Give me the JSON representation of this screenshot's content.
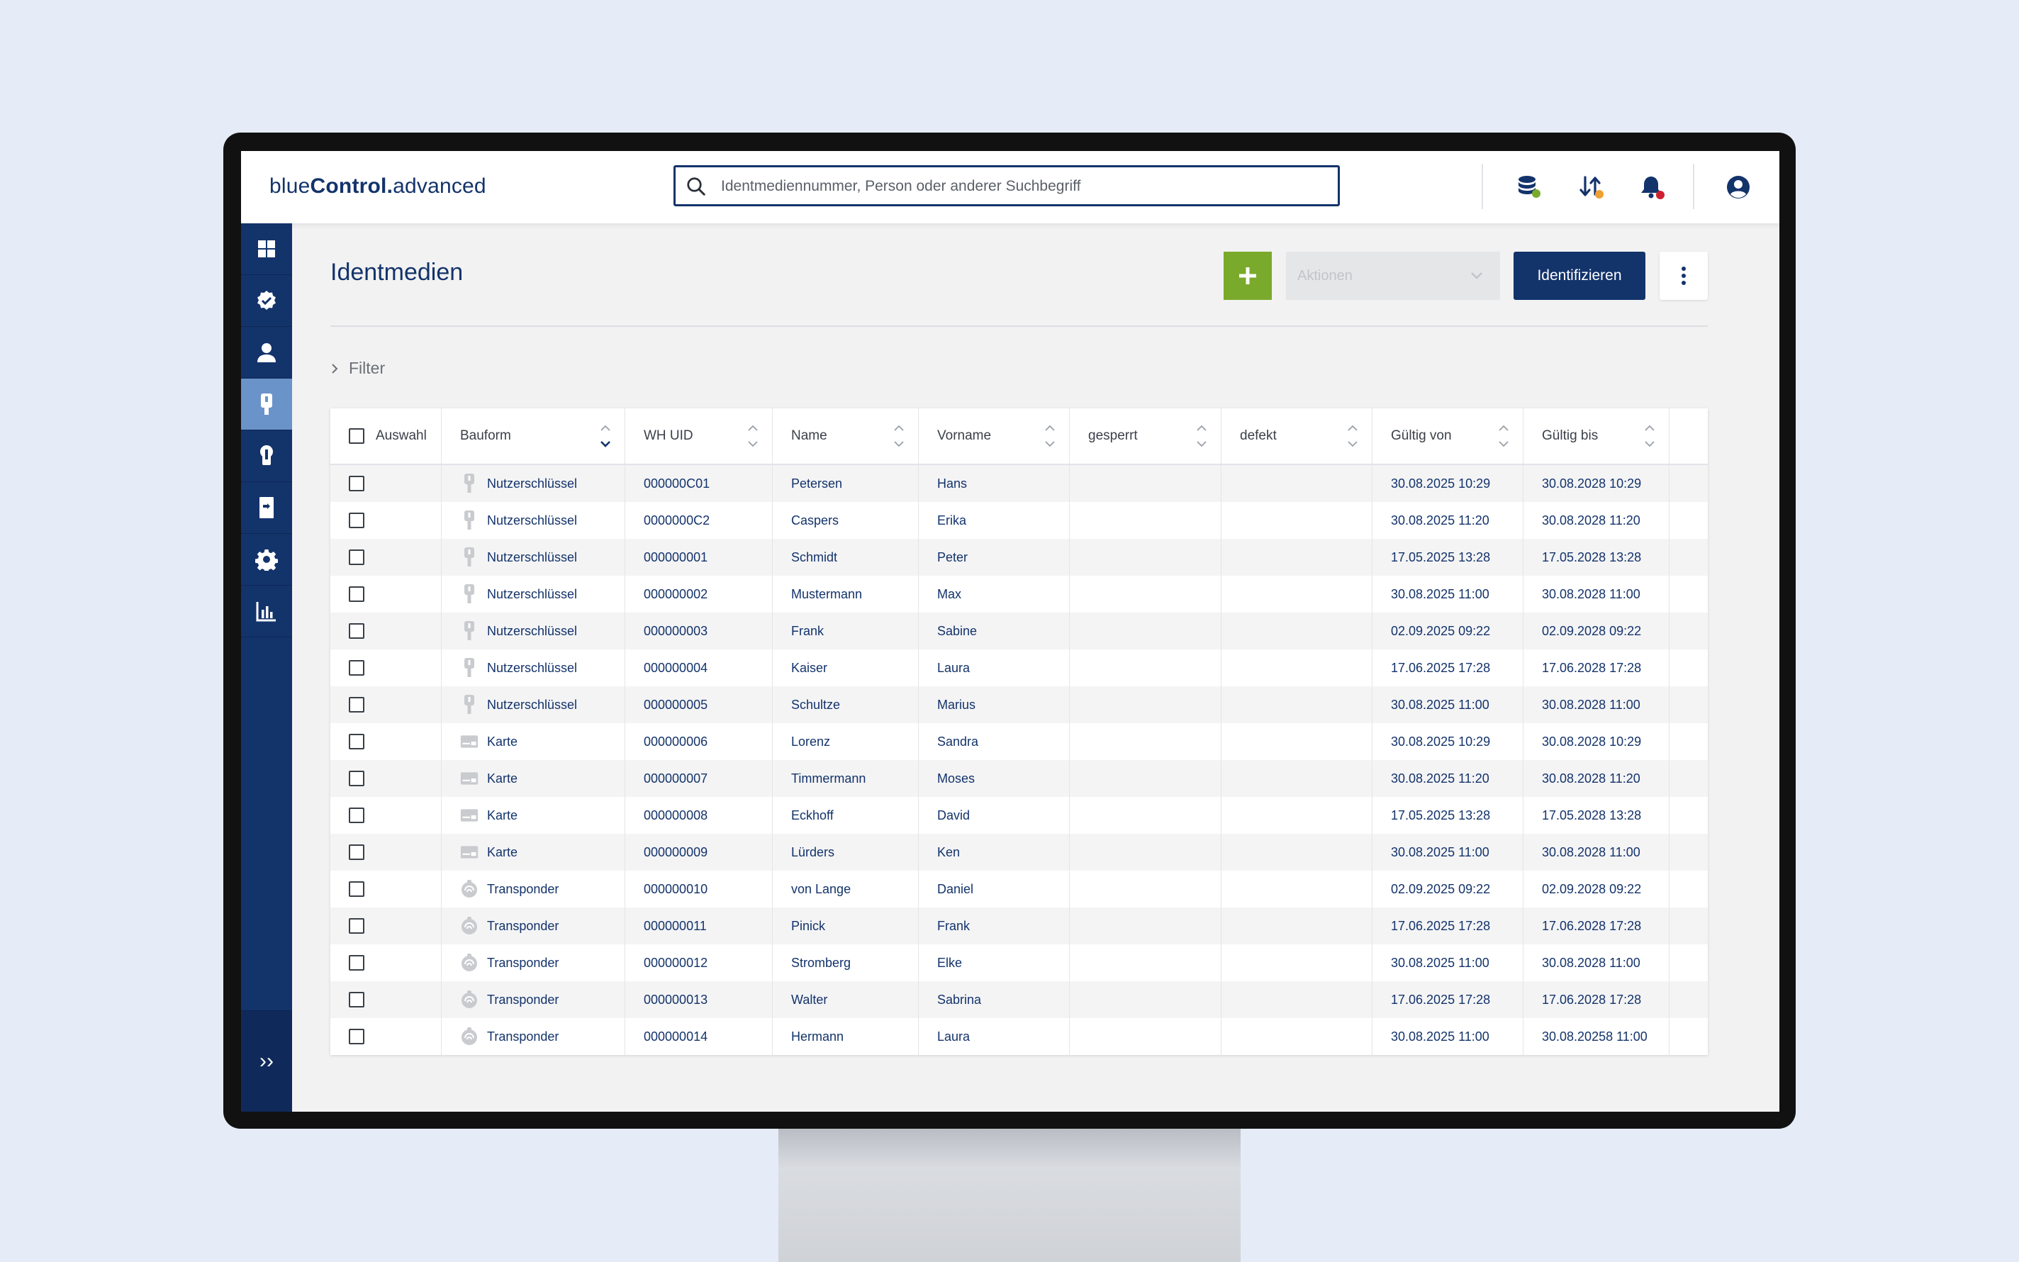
{
  "app": {
    "logo_light": "blue",
    "logo_bold": "Control.",
    "logo_tail": "advanced"
  },
  "search": {
    "placeholder": "Identmediennummer, Person oder anderer Suchbegriff"
  },
  "header_icons": [
    "database-status-icon",
    "sync-status-icon",
    "notification-bell-icon",
    "account-icon"
  ],
  "colors": {
    "primary": "#13336b",
    "accent_green": "#7aaa2c",
    "status_green": "#7aaa2c",
    "status_orange": "#f0a030",
    "status_red": "#d0202e",
    "nav_active": "#6a93c9"
  },
  "sidebar": {
    "items": [
      {
        "icon": "dashboard-icon"
      },
      {
        "icon": "verified-badge-icon"
      },
      {
        "icon": "person-icon"
      },
      {
        "icon": "key-icon",
        "active": true
      },
      {
        "icon": "lock-cylinder-icon"
      },
      {
        "icon": "door-icon"
      },
      {
        "icon": "settings-gear-icon"
      },
      {
        "icon": "bar-chart-icon"
      }
    ],
    "expand_label": "››"
  },
  "page": {
    "title": "Identmedien",
    "actions_placeholder": "Aktionen",
    "identify_label": "Identifizieren",
    "filter_label": "Filter"
  },
  "table": {
    "columns": [
      "Auswahl",
      "Bauform",
      "WH UID",
      "Name",
      "Vorname",
      "gesperrt",
      "defekt",
      "Gültig von",
      "Gültig bis"
    ],
    "rows": [
      {
        "bauform": "Nutzerschlüssel",
        "type": "key",
        "uid": "000000C01",
        "name": "Petersen",
        "vorname": "Hans",
        "gesperrt": "",
        "defekt": "",
        "von": "30.08.2025 10:29",
        "bis": "30.08.2028 10:29"
      },
      {
        "bauform": "Nutzerschlüssel",
        "type": "key",
        "uid": "0000000C2",
        "name": "Caspers",
        "vorname": "Erika",
        "gesperrt": "",
        "defekt": "",
        "von": "30.08.2025 11:20",
        "bis": "30.08.2028 11:20"
      },
      {
        "bauform": "Nutzerschlüssel",
        "type": "key",
        "uid": "000000001",
        "name": "Schmidt",
        "vorname": "Peter",
        "gesperrt": "",
        "defekt": "",
        "von": "17.05.2025 13:28",
        "bis": "17.05.2028 13:28"
      },
      {
        "bauform": "Nutzerschlüssel",
        "type": "key",
        "uid": "000000002",
        "name": "Mustermann",
        "vorname": "Max",
        "gesperrt": "",
        "defekt": "",
        "von": "30.08.2025 11:00",
        "bis": "30.08.2028 11:00"
      },
      {
        "bauform": "Nutzerschlüssel",
        "type": "key",
        "uid": "000000003",
        "name": "Frank",
        "vorname": "Sabine",
        "gesperrt": "",
        "defekt": "",
        "von": "02.09.2025 09:22",
        "bis": "02.09.2028 09:22"
      },
      {
        "bauform": "Nutzerschlüssel",
        "type": "key",
        "uid": "000000004",
        "name": "Kaiser",
        "vorname": "Laura",
        "gesperrt": "",
        "defekt": "",
        "von": "17.06.2025 17:28",
        "bis": "17.06.2028 17:28"
      },
      {
        "bauform": "Nutzerschlüssel",
        "type": "key",
        "uid": "000000005",
        "name": "Schultze",
        "vorname": "Marius",
        "gesperrt": "",
        "defekt": "",
        "von": "30.08.2025 11:00",
        "bis": "30.08.2028 11:00"
      },
      {
        "bauform": "Karte",
        "type": "card",
        "uid": "000000006",
        "name": "Lorenz",
        "vorname": "Sandra",
        "gesperrt": "",
        "defekt": "",
        "von": "30.08.2025 10:29",
        "bis": "30.08.2028 10:29"
      },
      {
        "bauform": "Karte",
        "type": "card",
        "uid": "000000007",
        "name": "Timmermann",
        "vorname": "Moses",
        "gesperrt": "",
        "defekt": "",
        "von": "30.08.2025 11:20",
        "bis": "30.08.2028 11:20"
      },
      {
        "bauform": "Karte",
        "type": "card",
        "uid": "000000008",
        "name": "Eckhoff",
        "vorname": "David",
        "gesperrt": "",
        "defekt": "",
        "von": "17.05.2025 13:28",
        "bis": "17.05.2028 13:28"
      },
      {
        "bauform": "Karte",
        "type": "card",
        "uid": "000000009",
        "name": "Lürders",
        "vorname": "Ken",
        "gesperrt": "",
        "defekt": "",
        "von": "30.08.2025 11:00",
        "bis": "30.08.2028 11:00"
      },
      {
        "bauform": "Transponder",
        "type": "transponder",
        "uid": "000000010",
        "name": "von Lange",
        "vorname": "Daniel",
        "gesperrt": "",
        "defekt": "",
        "von": "02.09.2025 09:22",
        "bis": "02.09.2028 09:22"
      },
      {
        "bauform": "Transponder",
        "type": "transponder",
        "uid": "000000011",
        "name": "Pinick",
        "vorname": "Frank",
        "gesperrt": "",
        "defekt": "",
        "von": "17.06.2025 17:28",
        "bis": "17.06.2028 17:28"
      },
      {
        "bauform": "Transponder",
        "type": "transponder",
        "uid": "000000012",
        "name": "Stromberg",
        "vorname": "Elke",
        "gesperrt": "",
        "defekt": "",
        "von": "30.08.2025 11:00",
        "bis": "30.08.2028 11:00"
      },
      {
        "bauform": "Transponder",
        "type": "transponder",
        "uid": "000000013",
        "name": "Walter",
        "vorname": "Sabrina",
        "gesperrt": "",
        "defekt": "",
        "von": "17.06.2025 17:28",
        "bis": "17.06.2028 17:28"
      },
      {
        "bauform": "Transponder",
        "type": "transponder",
        "uid": "000000014",
        "name": "Hermann",
        "vorname": "Laura",
        "gesperrt": "",
        "defekt": "",
        "von": "30.08.2025 11:00",
        "bis": "30.08.20258 11:00"
      }
    ]
  }
}
